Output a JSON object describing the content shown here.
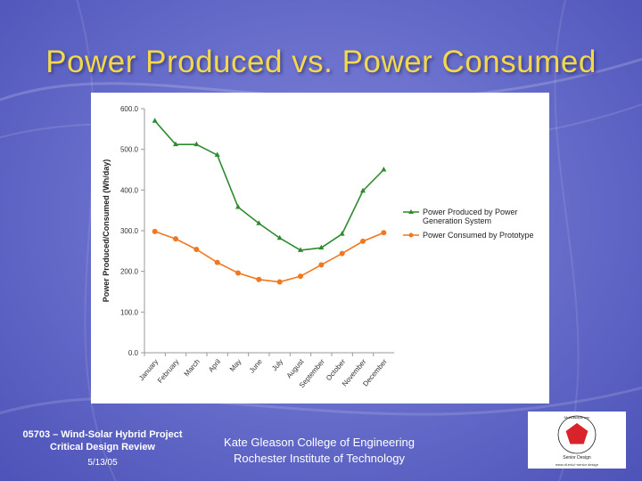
{
  "slide": {
    "title": "Power Produced vs. Power Consumed",
    "footer_left": {
      "line1": "05703 – Wind-Solar Hybrid Project",
      "line2": "Critical Design Review",
      "date": "5/13/05"
    },
    "footer_center": {
      "line1": "Kate Gleason College of Engineering",
      "line2": "Rochester Institute of Technology"
    },
    "logo": {
      "text_top": "Multidisciplinary",
      "text_mid": "Senior Design",
      "text_bottom": "www.rit.edu/~senior design",
      "colors": {
        "shape": "#d8232a",
        "ring": "#1a1a1a"
      }
    }
  },
  "chart_data": {
    "type": "line",
    "title": "",
    "xlabel": "",
    "ylabel": "Power Produced/Consumed (Wh/day)",
    "categories": [
      "January",
      "February",
      "March",
      "April",
      "May",
      "June",
      "July",
      "August",
      "September",
      "October",
      "November",
      "December"
    ],
    "series": [
      {
        "name": "Power Produced by Power Generation System",
        "legend_lines": [
          "Power Produced by Power",
          "Generation System"
        ],
        "color": "#2e8b2e",
        "marker": "triangle",
        "values": [
          570,
          512,
          512,
          486,
          358,
          318,
          282,
          252,
          258,
          292,
          398,
          450
        ]
      },
      {
        "name": "Power Consumed by Prototype",
        "legend_lines": [
          "Power Consumed by Prototype"
        ],
        "color": "#f07820",
        "marker": "circle",
        "values": [
          298,
          280,
          254,
          222,
          196,
          180,
          174,
          188,
          216,
          244,
          274,
          295
        ]
      }
    ],
    "ylim": [
      0,
      600
    ],
    "yticks": [
      0,
      100,
      200,
      300,
      400,
      500,
      600
    ],
    "ytick_labels": [
      "0.0",
      "100.0",
      "200.0",
      "300.0",
      "400.0",
      "500.0",
      "600.0"
    ],
    "grid": false,
    "legend_position": "right"
  }
}
